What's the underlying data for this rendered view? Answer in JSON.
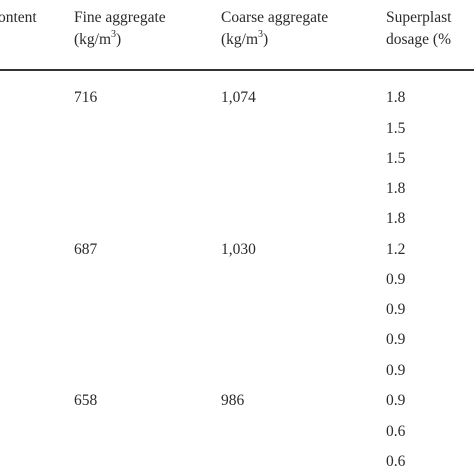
{
  "table": {
    "headers": {
      "col1": {
        "line1": "ontent"
      },
      "col2": {
        "line1": "Fine aggregate",
        "line2_pre": "(kg/m",
        "line2_sup": "3",
        "line2_post": ")"
      },
      "col3": {
        "line1": "Coarse aggregate",
        "line2_pre": "(kg/m",
        "line2_sup": "3",
        "line2_post": ")"
      },
      "col4": {
        "line1": "Superplast",
        "line2": "dosage (%"
      }
    },
    "rows": [
      {
        "fine": "716",
        "coarse": "1,074",
        "sp": "1.8"
      },
      {
        "fine": "",
        "coarse": "",
        "sp": "1.5"
      },
      {
        "fine": "",
        "coarse": "",
        "sp": "1.5"
      },
      {
        "fine": "",
        "coarse": "",
        "sp": "1.8"
      },
      {
        "fine": "",
        "coarse": "",
        "sp": "1.8"
      },
      {
        "fine": "687",
        "coarse": "1,030",
        "sp": "1.2"
      },
      {
        "fine": "",
        "coarse": "",
        "sp": "0.9"
      },
      {
        "fine": "",
        "coarse": "",
        "sp": "0.9"
      },
      {
        "fine": "",
        "coarse": "",
        "sp": "0.9"
      },
      {
        "fine": "",
        "coarse": "",
        "sp": "0.9"
      },
      {
        "fine": "658",
        "coarse": "986",
        "sp": "0.9"
      },
      {
        "fine": "",
        "coarse": "",
        "sp": "0.6"
      },
      {
        "fine": "",
        "coarse": "",
        "sp": "0.6"
      }
    ]
  }
}
